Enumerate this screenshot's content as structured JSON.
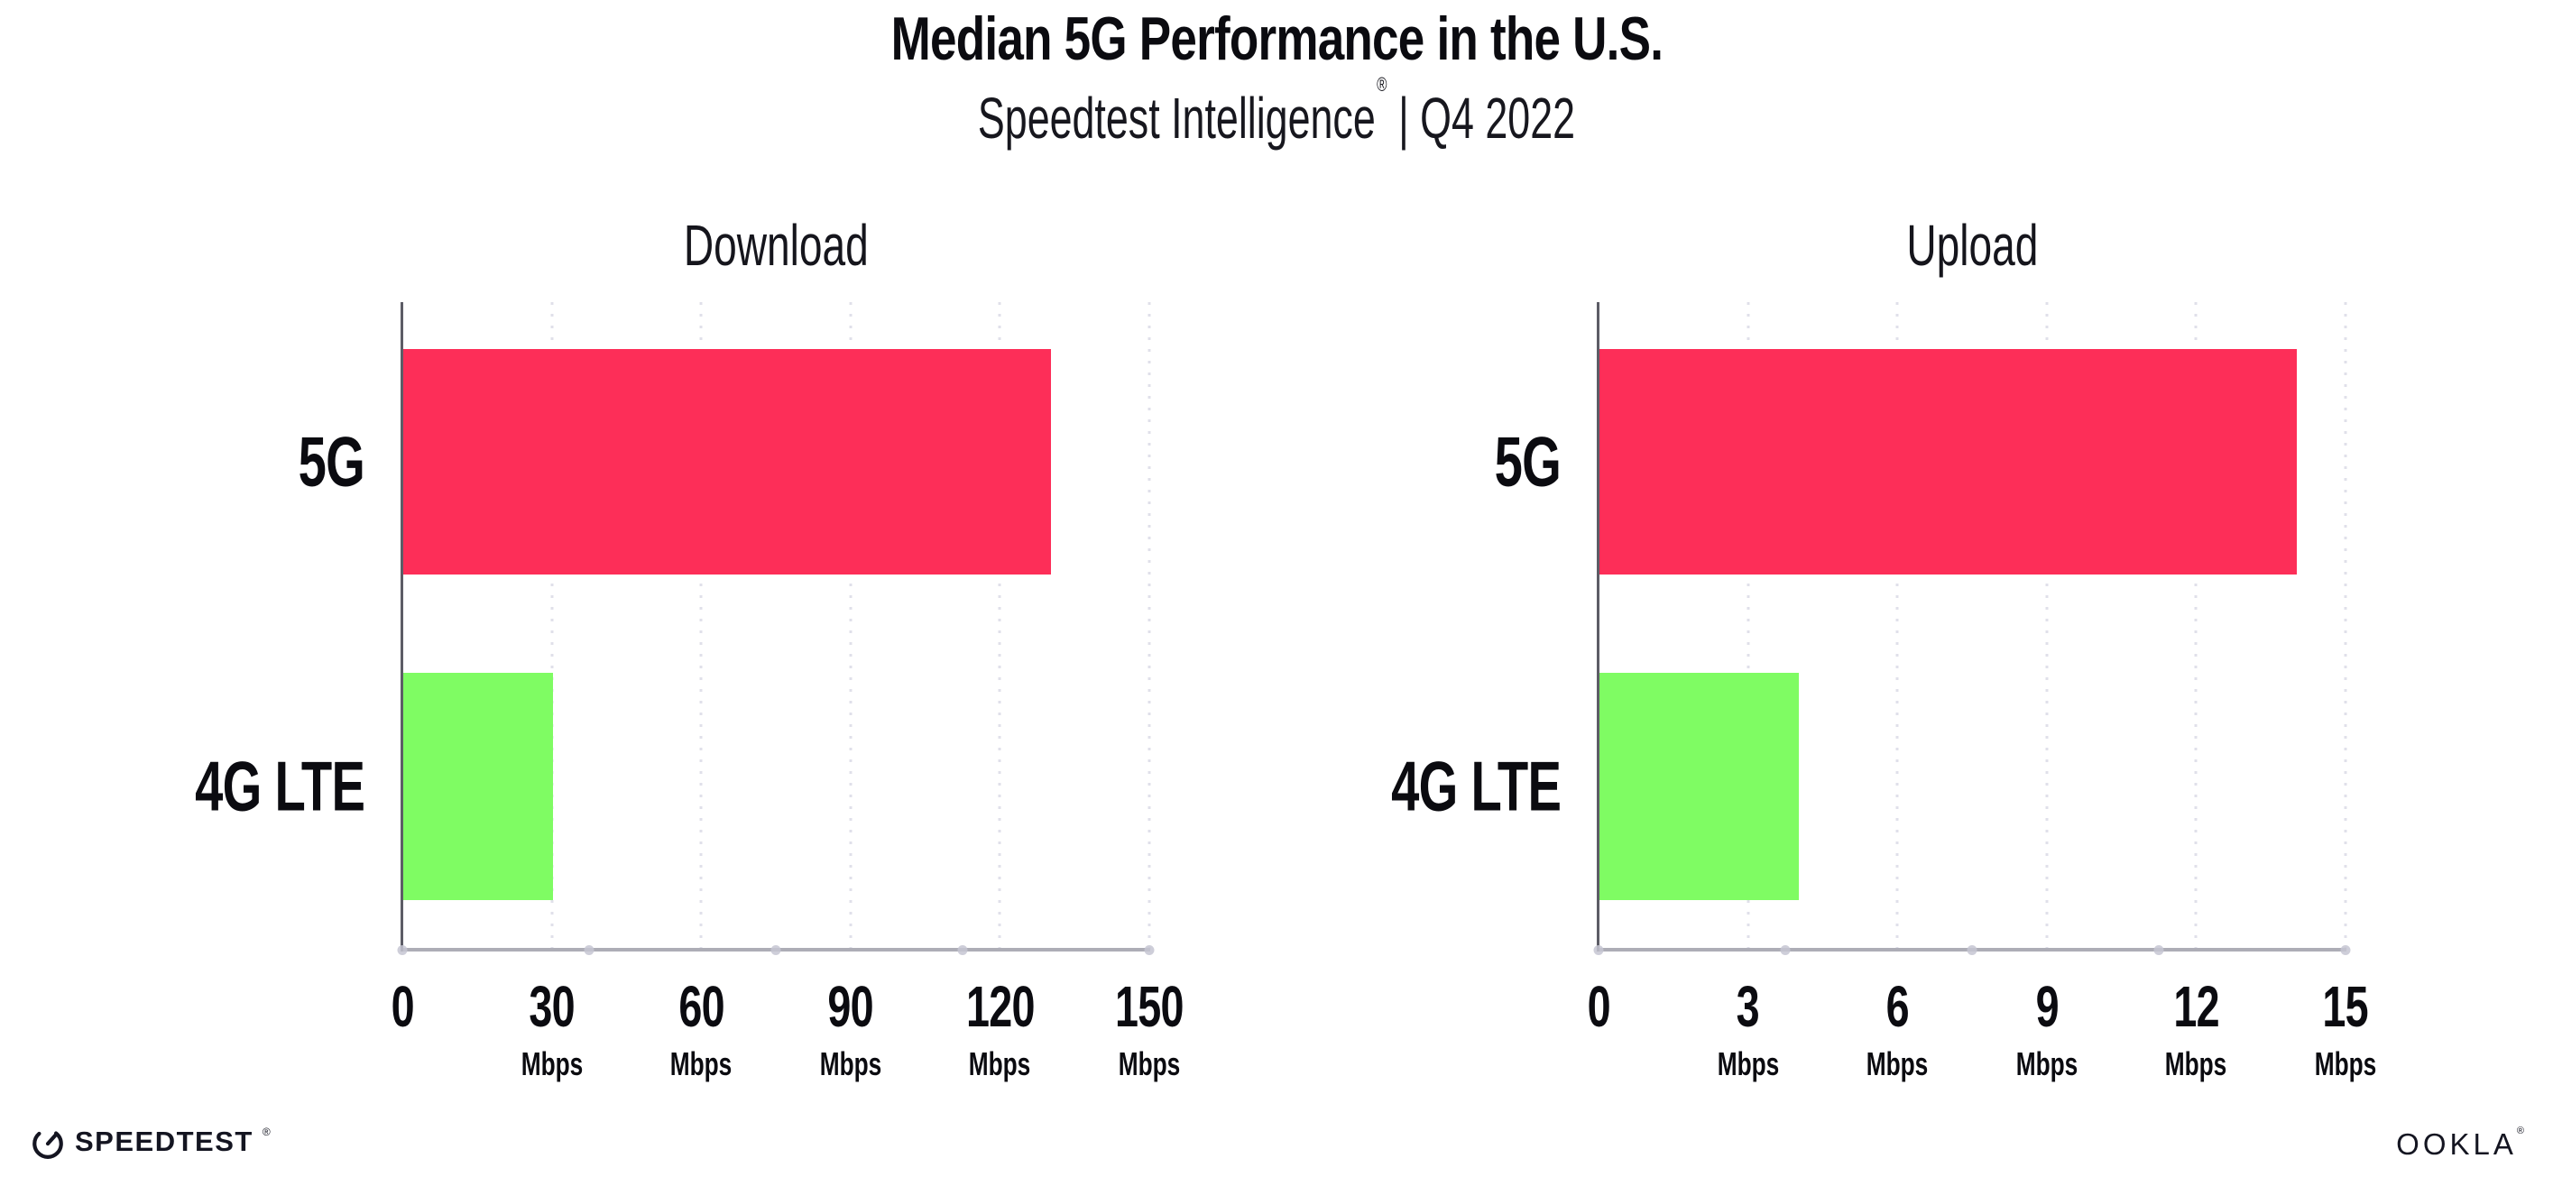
{
  "header": {
    "title": "Median 5G Performance in the U.S.",
    "subtitle_brand": "Speedtest Intelligence",
    "subtitle_mark": "®",
    "subtitle_rest": "| Q4 2022"
  },
  "chart_data": [
    {
      "type": "bar",
      "orientation": "horizontal",
      "title": "Download",
      "categories": [
        "5G",
        "4G LTE"
      ],
      "values": [
        130,
        30
      ],
      "unit": "Mbps",
      "xlim": [
        0,
        150
      ],
      "xticks": [
        0,
        30,
        60,
        90,
        120,
        150
      ],
      "bar_colors": [
        "#fd2e58",
        "#7ffc63"
      ],
      "grid": "dotted-vertical-at-ticks",
      "legend": "none"
    },
    {
      "type": "bar",
      "orientation": "horizontal",
      "title": "Upload",
      "categories": [
        "5G",
        "4G LTE"
      ],
      "values": [
        14,
        4
      ],
      "unit": "Mbps",
      "xlim": [
        0,
        15
      ],
      "xticks": [
        0,
        3,
        6,
        9,
        12,
        15
      ],
      "bar_colors": [
        "#fd2e58",
        "#7ffc63"
      ],
      "grid": "dotted-vertical-at-ticks",
      "legend": "none"
    }
  ],
  "footer": {
    "speedtest_label": "SPEEDTEST",
    "speedtest_mark": "®",
    "ookla_label": "OOKLA",
    "ookla_mark": "®"
  },
  "colors": {
    "bar_5g": "#fd2e58",
    "bar_4g_lte": "#7ffc63",
    "gridline": "#e0e0ea",
    "x_axis": "#adadb6",
    "y_axis": "#5c5c66",
    "text": "#0b0b10",
    "background": "#ffffff"
  }
}
